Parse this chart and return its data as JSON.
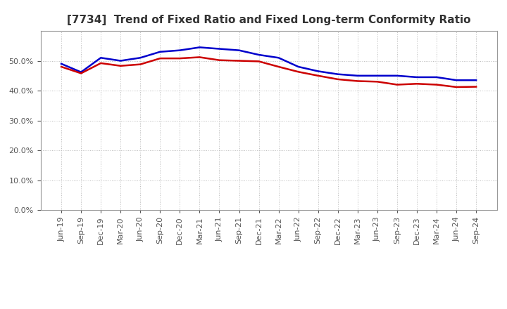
{
  "title": "[7734]  Trend of Fixed Ratio and Fixed Long-term Conformity Ratio",
  "x_labels": [
    "Jun-19",
    "Sep-19",
    "Dec-19",
    "Mar-20",
    "Jun-20",
    "Sep-20",
    "Dec-20",
    "Mar-21",
    "Jun-21",
    "Sep-21",
    "Dec-21",
    "Mar-22",
    "Jun-22",
    "Sep-22",
    "Dec-22",
    "Mar-23",
    "Jun-23",
    "Sep-23",
    "Dec-23",
    "Mar-24",
    "Jun-24",
    "Sep-24"
  ],
  "fixed_ratio": [
    0.49,
    0.462,
    0.51,
    0.5,
    0.51,
    0.53,
    0.535,
    0.545,
    0.54,
    0.535,
    0.52,
    0.51,
    0.48,
    0.465,
    0.455,
    0.45,
    0.45,
    0.45,
    0.445,
    0.445,
    0.435,
    0.435
  ],
  "fixed_lt_ratio": [
    0.48,
    0.458,
    0.492,
    0.483,
    0.488,
    0.508,
    0.508,
    0.512,
    0.502,
    0.5,
    0.498,
    0.48,
    0.463,
    0.45,
    0.438,
    0.432,
    0.43,
    0.42,
    0.423,
    0.42,
    0.412,
    0.413
  ],
  "fixed_ratio_color": "#0000cc",
  "fixed_lt_ratio_color": "#cc0000",
  "line_width": 1.8,
  "ylim": [
    0.0,
    0.6
  ],
  "yticks": [
    0.0,
    0.1,
    0.2,
    0.3,
    0.4,
    0.5
  ],
  "background_color": "#ffffff",
  "grid_color": "#bbbbbb",
  "title_fontsize": 11,
  "legend_fontsize": 9,
  "tick_fontsize": 8
}
